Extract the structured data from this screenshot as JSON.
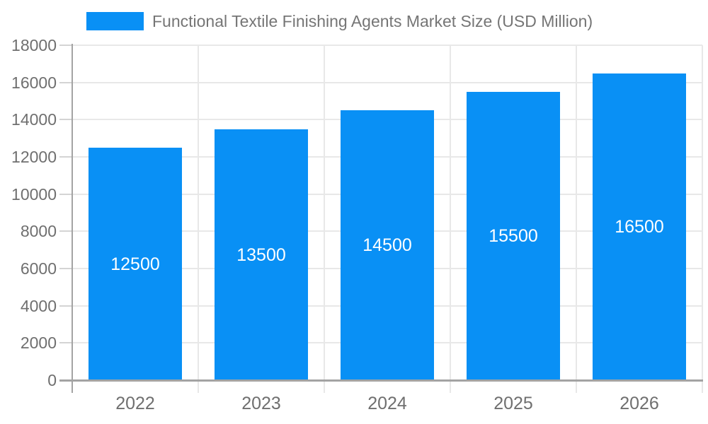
{
  "chart_data": {
    "type": "bar",
    "title": "Functional Textile Finishing Agents Market Size (USD Million)",
    "categories": [
      "2022",
      "2023",
      "2024",
      "2025",
      "2026"
    ],
    "values": [
      12500,
      13500,
      14500,
      15500,
      16500
    ],
    "bar_value_labels": [
      "12500",
      "13500",
      "14500",
      "15500",
      "16500"
    ],
    "xlabel": "",
    "ylabel": "",
    "ylim": [
      0,
      18000
    ],
    "yticks": [
      0,
      2000,
      4000,
      6000,
      8000,
      10000,
      12000,
      14000,
      16000,
      18000
    ],
    "grid": "on",
    "legend_position": "top-left",
    "colors": {
      "bar": "#0990F5",
      "bar_value_label": "#ffffff",
      "axis_text": "#6f6f6f",
      "legend_text": "#757575",
      "gridline": "#e8e8e8",
      "axis_line": "#a3a3a3",
      "tick_mark": "#d4d4d4",
      "background": "#ffffff"
    }
  }
}
